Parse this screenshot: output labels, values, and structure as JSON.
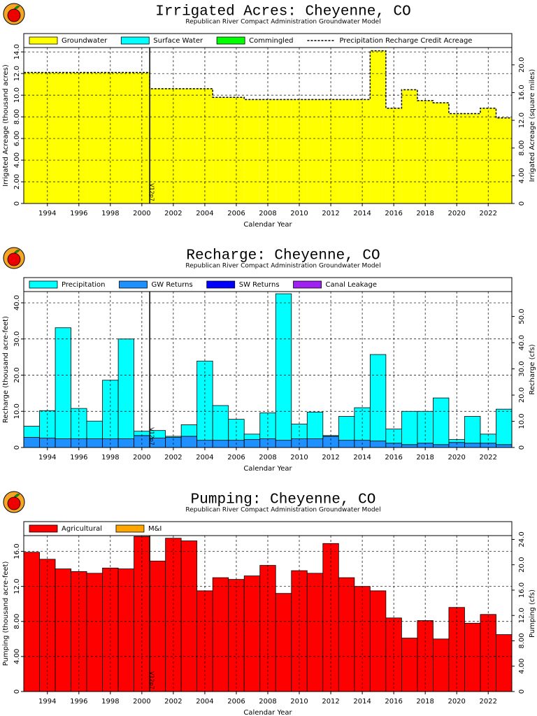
{
  "chart_data": [
    {
      "type": "bar",
      "title": "Irrigated Acres: Cheyenne, CO",
      "subtitle": "Republican River Compact Administration Groundwater Model",
      "xlabel": "Calendar Year",
      "ylabel": "Irrigated Acreage (thousand acres)",
      "y2label": "Irrigated Acreage (square miles)",
      "x": [
        1993,
        1994,
        1995,
        1996,
        1997,
        1998,
        1999,
        2000,
        2001,
        2002,
        2003,
        2004,
        2005,
        2006,
        2007,
        2008,
        2009,
        2010,
        2011,
        2012,
        2013,
        2014,
        2015,
        2016,
        2017,
        2018,
        2019,
        2020,
        2021,
        2022,
        2023
      ],
      "xlim": [
        1992.5,
        2023.5
      ],
      "xticks": [
        1994,
        1996,
        1998,
        2000,
        2002,
        2004,
        2006,
        2008,
        2010,
        2012,
        2014,
        2016,
        2018,
        2020,
        2022
      ],
      "ylim": [
        0,
        14.4
      ],
      "yticks": [
        0,
        {
          "value": 2,
          "label": "2.00"
        },
        {
          "value": 4,
          "label": "4.00"
        },
        {
          "value": 6,
          "label": "6.00"
        },
        {
          "value": 8,
          "label": "8.00"
        },
        {
          "value": 10,
          "label": "10.0"
        },
        {
          "value": 12,
          "label": "12.0"
        },
        {
          "value": 14,
          "label": "14.0"
        }
      ],
      "y2lim": [
        0,
        22.5
      ],
      "y2ticks": [
        0,
        {
          "value": 4,
          "label": "4.00"
        },
        {
          "value": 8,
          "label": "8.00"
        },
        {
          "value": 12,
          "label": "12.0"
        },
        {
          "value": 16,
          "label": "16.0"
        },
        {
          "value": 20,
          "label": "20.0"
        }
      ],
      "grid": true,
      "bar_outline": false,
      "annotation": {
        "x": 2000.5,
        "label": "V12p7"
      },
      "series": [
        {
          "name": "Groundwater",
          "color": "#ffff00",
          "values": [
            12.1,
            12.1,
            12.1,
            12.1,
            12.1,
            12.1,
            12.1,
            12.1,
            10.6,
            10.6,
            10.6,
            10.6,
            9.8,
            9.8,
            9.6,
            9.6,
            9.6,
            9.6,
            9.6,
            9.6,
            9.6,
            9.6,
            14.1,
            8.8,
            10.5,
            9.5,
            9.3,
            8.3,
            8.3,
            8.8,
            7.9
          ]
        },
        {
          "name": "Surface Water",
          "color": "#00ffff",
          "values": [
            0,
            0,
            0,
            0,
            0,
            0,
            0,
            0,
            0,
            0,
            0,
            0,
            0,
            0,
            0,
            0,
            0,
            0,
            0,
            0,
            0,
            0,
            0,
            0,
            0,
            0,
            0,
            0,
            0,
            0,
            0
          ]
        },
        {
          "name": "Commingled",
          "color": "#00ff00",
          "values": [
            0,
            0,
            0,
            0,
            0,
            0,
            0,
            0,
            0,
            0,
            0,
            0,
            0,
            0,
            0,
            0,
            0,
            0,
            0,
            0,
            0,
            0,
            0,
            0,
            0,
            0,
            0,
            0,
            0,
            0,
            0
          ]
        },
        {
          "name": "Precipitation Recharge Credit Acreage",
          "type": "step",
          "color": "#000000",
          "values": [
            12.1,
            12.1,
            12.1,
            12.1,
            12.1,
            12.1,
            12.1,
            12.1,
            10.6,
            10.6,
            10.6,
            10.6,
            9.8,
            9.8,
            9.6,
            9.6,
            9.6,
            9.6,
            9.6,
            9.6,
            9.6,
            9.6,
            14.1,
            8.8,
            10.5,
            9.5,
            9.3,
            8.3,
            8.3,
            8.8,
            7.9
          ]
        }
      ]
    },
    {
      "type": "bar",
      "title": "Recharge: Cheyenne, CO",
      "subtitle": "Republican River Compact Administration Groundwater Model",
      "xlabel": "Calendar Year",
      "ylabel": "Recharge (thousand acre-feet)",
      "y2label": "Recharge (cfs)",
      "x": [
        1993,
        1994,
        1995,
        1996,
        1997,
        1998,
        1999,
        2000,
        2001,
        2002,
        2003,
        2004,
        2005,
        2006,
        2007,
        2008,
        2009,
        2010,
        2011,
        2012,
        2013,
        2014,
        2015,
        2016,
        2017,
        2018,
        2019,
        2020,
        2021,
        2022,
        2023
      ],
      "xlim": [
        1992.5,
        2023.5
      ],
      "xticks": [
        1994,
        1996,
        1998,
        2000,
        2002,
        2004,
        2006,
        2008,
        2010,
        2012,
        2014,
        2016,
        2018,
        2020,
        2022
      ],
      "ylim": [
        0,
        43.1
      ],
      "yticks": [
        0,
        {
          "value": 10,
          "label": "10.0"
        },
        {
          "value": 20,
          "label": "20.0"
        },
        {
          "value": 30,
          "label": "30.0"
        },
        {
          "value": 40,
          "label": "40.0"
        }
      ],
      "y2lim": [
        0,
        59.5
      ],
      "y2ticks": [
        0,
        {
          "value": 10,
          "label": "10.0"
        },
        {
          "value": 20,
          "label": "20.0"
        },
        {
          "value": 30,
          "label": "30.0"
        },
        {
          "value": 40,
          "label": "40.0"
        },
        {
          "value": 50,
          "label": "50.0"
        }
      ],
      "grid": true,
      "bar_outline": true,
      "annotation": {
        "x": 2000.5,
        "label": "V12p7"
      },
      "series": [
        {
          "name": "GW Returns",
          "color": "#1e90ff",
          "values": [
            2.8,
            2.6,
            2.4,
            2.4,
            2.4,
            2.4,
            2.4,
            3.3,
            2.6,
            2.8,
            3.1,
            2.0,
            2.0,
            2.0,
            2.2,
            2.4,
            2.0,
            2.4,
            2.4,
            3.1,
            2.0,
            2.0,
            1.8,
            1.2,
            0.8,
            1.2,
            0.8,
            1.4,
            1.2,
            1.2,
            0.8
          ]
        },
        {
          "name": "Precipitation",
          "color": "#00ffff",
          "values": [
            3.1,
            7.6,
            30.7,
            8.4,
            4.9,
            16.2,
            27.6,
            1.2,
            2.1,
            0.3,
            3.2,
            21.9,
            9.6,
            5.8,
            1.5,
            7.2,
            40.5,
            4.1,
            7.4,
            0.2,
            6.6,
            9.0,
            23.9,
            3.9,
            9.2,
            8.8,
            12.9,
            0.8,
            7.4,
            2.5,
            9.8
          ]
        },
        {
          "name": "SW Returns",
          "color": "#0000ff",
          "values": [
            0,
            0,
            0,
            0,
            0,
            0,
            0,
            0,
            0,
            0,
            0,
            0,
            0,
            0,
            0,
            0,
            0,
            0,
            0,
            0,
            0,
            0,
            0,
            0,
            0,
            0,
            0,
            0,
            0,
            0,
            0
          ]
        },
        {
          "name": "Canal Leakage",
          "color": "#a020f0",
          "values": [
            0,
            0,
            0,
            0,
            0,
            0,
            0,
            0,
            0,
            0,
            0,
            0,
            0,
            0,
            0,
            0,
            0,
            0,
            0,
            0,
            0,
            0,
            0,
            0,
            0,
            0,
            0,
            0,
            0,
            0,
            0
          ]
        }
      ],
      "legend_order": [
        1,
        0,
        2,
        3
      ]
    },
    {
      "type": "bar",
      "title": "Pumping: Cheyenne, CO",
      "subtitle": "Republican River Compact Administration Groundwater Model",
      "xlabel": "Calendar Year",
      "ylabel": "Pumping (thousand acre-feet)",
      "y2label": "Pumping (cfs)",
      "x": [
        1993,
        1994,
        1995,
        1996,
        1997,
        1998,
        1999,
        2000,
        2001,
        2002,
        2003,
        2004,
        2005,
        2006,
        2007,
        2008,
        2009,
        2010,
        2011,
        2012,
        2013,
        2014,
        2015,
        2016,
        2017,
        2018,
        2019,
        2020,
        2021,
        2022,
        2023
      ],
      "xlim": [
        1992.5,
        2023.5
      ],
      "xticks": [
        1994,
        1996,
        1998,
        2000,
        2002,
        2004,
        2006,
        2008,
        2010,
        2012,
        2014,
        2016,
        2018,
        2020,
        2022
      ],
      "ylim": [
        0,
        17.8
      ],
      "yticks": [
        0,
        {
          "value": 4,
          "label": "4.00"
        },
        {
          "value": 8,
          "label": "8.00"
        },
        {
          "value": 12,
          "label": "12.0"
        },
        {
          "value": 16,
          "label": "16.0"
        }
      ],
      "y2lim": [
        0,
        24.6
      ],
      "y2ticks": [
        0,
        {
          "value": 4,
          "label": "4.00"
        },
        {
          "value": 8,
          "label": "8.00"
        },
        {
          "value": 12,
          "label": "12.0"
        },
        {
          "value": 16,
          "label": "16.0"
        },
        {
          "value": 20,
          "label": "20.0"
        },
        {
          "value": 24,
          "label": "24.0"
        }
      ],
      "grid": true,
      "bar_outline": true,
      "annotation": {
        "x": 2000.5,
        "label": "V12p7"
      },
      "series": [
        {
          "name": "Agricultural",
          "color": "#ff0000",
          "values": [
            15.9,
            15.1,
            14.0,
            13.7,
            13.5,
            14.1,
            14.0,
            17.7,
            14.9,
            17.5,
            17.2,
            11.5,
            13.0,
            12.8,
            13.2,
            14.4,
            11.2,
            13.8,
            13.5,
            16.9,
            13.0,
            12.0,
            11.5,
            8.4,
            6.1,
            8.1,
            6.0,
            9.6,
            7.8,
            8.8,
            6.5
          ]
        },
        {
          "name": "M&I",
          "color": "#ffa500",
          "values": [
            0,
            0,
            0,
            0,
            0,
            0,
            0,
            0,
            0,
            0,
            0,
            0,
            0,
            0,
            0,
            0,
            0,
            0,
            0,
            0,
            0,
            0,
            0,
            0,
            0,
            0,
            0,
            0,
            0,
            0,
            0
          ]
        }
      ]
    }
  ]
}
